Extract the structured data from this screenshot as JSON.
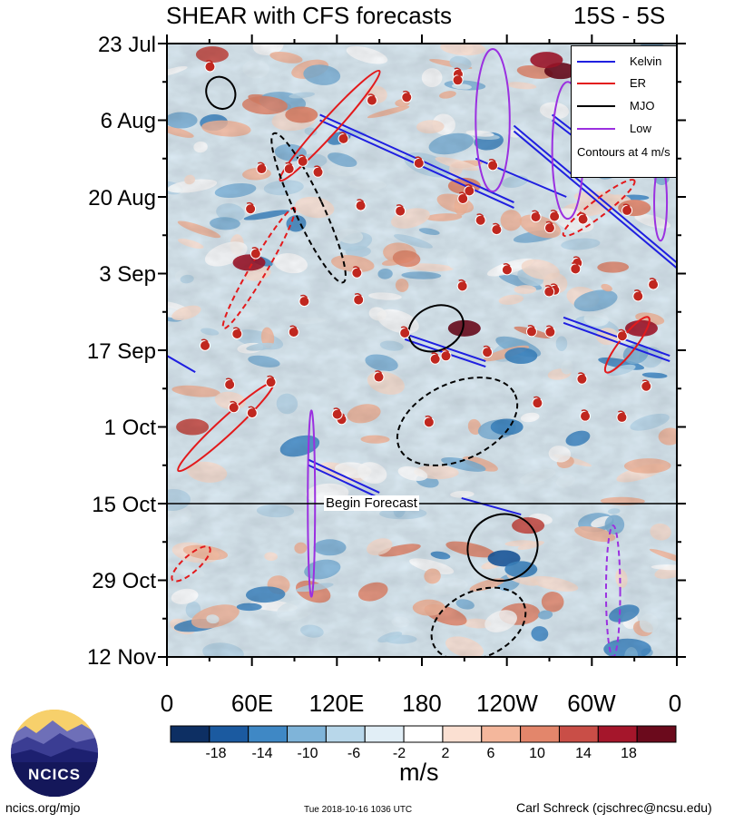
{
  "header": {
    "title": "SHEAR with CFS forecasts",
    "region": "15S - 5S"
  },
  "chart_data": {
    "type": "heatmap",
    "title": "SHEAR with CFS forecasts",
    "region": "15S - 5S",
    "y_ticks": [
      "23 Jul",
      "6 Aug",
      "20 Aug",
      "3 Sep",
      "17 Sep",
      "1 Oct",
      "15 Oct",
      "29 Oct",
      "12 Nov"
    ],
    "y_range_days": [
      0,
      112
    ],
    "x_ticks": [
      "0",
      "60E",
      "120E",
      "180",
      "120W",
      "60W",
      "0"
    ],
    "x_range_deg": [
      0,
      360
    ],
    "colorbar": {
      "units": "m/s",
      "levels": [
        -18,
        -14,
        -10,
        -6,
        -2,
        2,
        6,
        10,
        14,
        18
      ],
      "tick_labels": [
        "-18",
        "-14",
        "-10",
        "-6",
        "-2",
        "2",
        "6",
        "10",
        "14",
        "18"
      ],
      "colors": [
        "#0d2f63",
        "#1b5aa0",
        "#3f88c5",
        "#7fb4d9",
        "#b8d7ea",
        "#e1eef6",
        "#ffffff",
        "#fbe0d2",
        "#f4b79c",
        "#e3866b",
        "#c94e47",
        "#a5162b",
        "#6b0a1c"
      ]
    },
    "legend": [
      {
        "name": "Kelvin",
        "color": "#1f1fe0"
      },
      {
        "name": "ER",
        "color": "#e31a1c"
      },
      {
        "name": "MJO",
        "color": "#000000"
      },
      {
        "name": "Low",
        "color": "#9b30e0"
      }
    ],
    "contour_note": "Contours at 4 m/s",
    "forecast_start": "15 Oct",
    "forecast_label": "Begin Forecast",
    "kelvin_waves": [
      {
        "lon": [
          108,
          245
        ],
        "day": [
          13,
          29
        ]
      },
      {
        "lon": [
          108,
          245
        ],
        "day": [
          14,
          30
        ]
      },
      {
        "lon": [
          218,
          282
        ],
        "day": [
          21,
          28
        ]
      },
      {
        "lon": [
          245,
          360
        ],
        "day": [
          15,
          40
        ]
      },
      {
        "lon": [
          245,
          360
        ],
        "day": [
          16,
          41
        ]
      },
      {
        "lon": [
          272,
          302
        ],
        "day": [
          13,
          19
        ]
      },
      {
        "lon": [
          272,
          302
        ],
        "day": [
          14,
          20
        ]
      },
      {
        "lon": [
          168,
          225
        ],
        "day": [
          53,
          58
        ]
      },
      {
        "lon": [
          168,
          225
        ],
        "day": [
          54,
          59
        ]
      },
      {
        "lon": [
          280,
          355
        ],
        "day": [
          50,
          57
        ]
      },
      {
        "lon": [
          280,
          355
        ],
        "day": [
          51,
          58
        ]
      },
      {
        "lon": [
          0,
          20
        ],
        "day": [
          57,
          60
        ]
      },
      {
        "lon": [
          100,
          150
        ],
        "day": [
          76,
          82
        ]
      },
      {
        "lon": [
          100,
          150
        ],
        "day": [
          77,
          83
        ]
      },
      {
        "lon": [
          208,
          250
        ],
        "day": [
          83,
          86
        ]
      }
    ],
    "low_tracks": [
      {
        "lon": [
          100,
          104
        ],
        "day": [
          67,
          101
        ]
      },
      {
        "lon": [
          218,
          242
        ],
        "day": [
          1,
          27
        ]
      },
      {
        "lon": [
          272,
          294
        ],
        "day": [
          7,
          32
        ]
      },
      {
        "lon": [
          344,
          353
        ],
        "day": [
          22,
          36
        ]
      },
      {
        "lon": [
          310,
          320
        ],
        "day": [
          88,
          112
        ]
      }
    ],
    "mjo_centers": [
      {
        "lon": [
          28,
          48
        ],
        "day": [
          6,
          12
        ]
      },
      {
        "lon": [
          90,
          110
        ],
        "day": [
          15,
          45
        ]
      },
      {
        "lon": [
          170,
          210
        ],
        "day": [
          48,
          56
        ]
      },
      {
        "lon": [
          160,
          250
        ],
        "day": [
          62,
          76
        ]
      },
      {
        "lon": [
          212,
          262
        ],
        "day": [
          86,
          98
        ]
      },
      {
        "lon": [
          185,
          255
        ],
        "day": [
          100,
          112
        ]
      }
    ],
    "er_waves": [
      {
        "lon": [
          8,
          75
        ],
        "day": [
          62,
          78
        ]
      },
      {
        "lon": [
          40,
          90
        ],
        "day": [
          30,
          52
        ]
      },
      {
        "lon": [
          80,
          150
        ],
        "day": [
          5,
          25
        ]
      },
      {
        "lon": [
          280,
          330
        ],
        "day": [
          25,
          35
        ]
      },
      {
        "lon": [
          310,
          340
        ],
        "day": [
          50,
          60
        ]
      },
      {
        "lon": [
          4,
          30
        ],
        "day": [
          92,
          98
        ]
      }
    ],
    "storm_count": 61
  },
  "colorbar_units": "m/s",
  "footer": {
    "left": "ncics.org/mjo",
    "timestamp": "Tue 2018-10-16 1036 UTC",
    "credit": "Carl Schreck (cjschrec@ncsu.edu)"
  },
  "logo": {
    "text": "NCICS"
  }
}
